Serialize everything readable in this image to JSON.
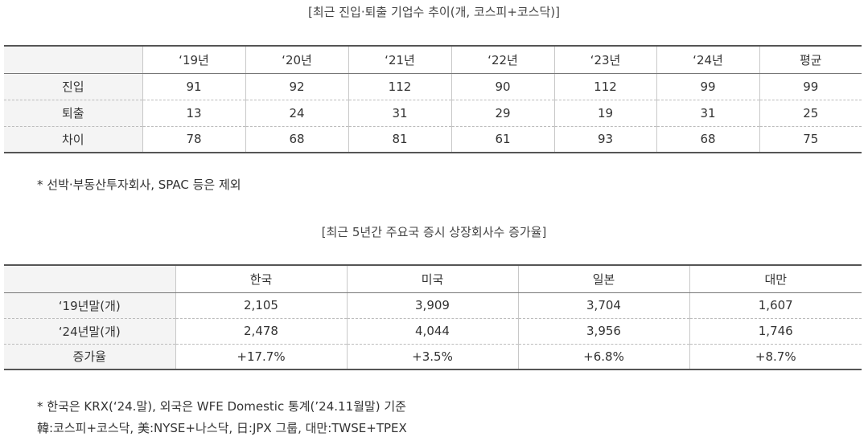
{
  "table1": {
    "caption": "[최근 진입·퇴출 기업수 추이(개, 코스피+코스닥)]",
    "headers": [
      "",
      "‘19년",
      "‘20년",
      "‘21년",
      "‘22년",
      "‘23년",
      "‘24년",
      "평균"
    ],
    "rows": [
      {
        "label": "진입",
        "values": [
          "91",
          "92",
          "112",
          "90",
          "112",
          "99",
          "99"
        ]
      },
      {
        "label": "퇴출",
        "values": [
          "13",
          "24",
          "31",
          "29",
          "19",
          "31",
          "25"
        ]
      },
      {
        "label": "차이",
        "values": [
          "78",
          "68",
          "81",
          "61",
          "93",
          "68",
          "75"
        ]
      }
    ],
    "note": "* 선박·부동산투자회사, SPAC 등은 제외"
  },
  "table2": {
    "caption": "[최근 5년간 주요국 증시 상장회사수 증가율]",
    "headers": [
      "",
      "한국",
      "미국",
      "일본",
      "대만"
    ],
    "rows": [
      {
        "label": "‘19년말(개)",
        "values": [
          "2,105",
          "3,909",
          "3,704",
          "1,607"
        ]
      },
      {
        "label": "‘24년말(개)",
        "values": [
          "2,478",
          "4,044",
          "3,956",
          "1,746"
        ]
      },
      {
        "label": "증가율",
        "values": [
          "+17.7%",
          "+3.5%",
          "+6.8%",
          "+8.7%"
        ]
      }
    ],
    "note_line1": "* 한국은 KRX(‘24.말), 외국은 WFE Domestic 통계(’24.11월말) 기준",
    "note_line2": "韓:코스피+코스닥, 美:NYSE+나스닥, 日:JPX 그룹, 대만:TWSE+TPEX"
  }
}
